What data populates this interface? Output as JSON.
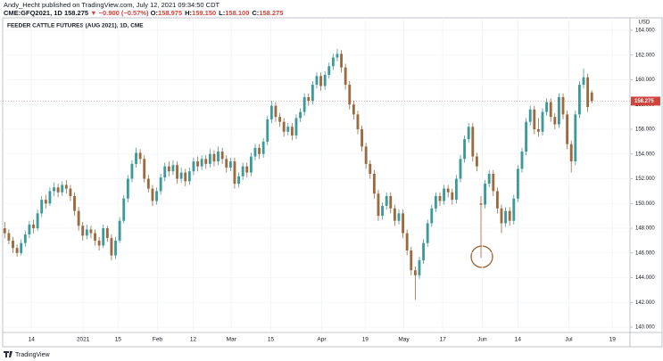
{
  "header": {
    "byline": "Andy_Hecht published on TradingView.com, July 12, 2021 09:34:50 CDT",
    "symbol": "CME:GFQ2021, 1D",
    "last": "158.275",
    "change": "▼ −0.900 (−0.57%)",
    "ohlc": [
      {
        "label": "O:",
        "value": "158.975"
      },
      {
        "label": "H:",
        "value": "159.150"
      },
      {
        "label": "L:",
        "value": "158.100"
      },
      {
        "label": "C:",
        "value": "158.275"
      }
    ]
  },
  "footer": {
    "brand": "TradingView"
  },
  "chart_data": {
    "type": "candlestick",
    "title": "FEEDER CATTLE FUTURES (AUG 2021), 1D, CME",
    "currency": "USD",
    "up_color": "#3d9a9b",
    "down_color": "#9c6a3f",
    "xlim": [
      -0.5,
      152.3
    ],
    "xticks": [
      {
        "value": 6.5,
        "label": "14"
      },
      {
        "value": 19.1,
        "label": "2021"
      },
      {
        "value": 27.6,
        "label": "15"
      },
      {
        "value": 37.2,
        "label": "Feb"
      },
      {
        "value": 45.9,
        "label": "12"
      },
      {
        "value": 55.2,
        "label": "Mar"
      },
      {
        "value": 64.8,
        "label": "15"
      },
      {
        "value": 77.2,
        "label": "Apr"
      },
      {
        "value": 87.8,
        "label": "19"
      },
      {
        "value": 97.2,
        "label": "May"
      },
      {
        "value": 106.7,
        "label": "17"
      },
      {
        "value": 116.3,
        "label": "Jun"
      },
      {
        "value": 125,
        "label": "14"
      },
      {
        "value": 137.4,
        "label": "Jul"
      },
      {
        "value": 148,
        "label": "19"
      }
    ],
    "ylim": [
      139.57,
      165.01
    ],
    "yticks": [
      {
        "value": 140,
        "label": "140.000"
      },
      {
        "value": 142,
        "label": "142.000"
      },
      {
        "value": 144,
        "label": "144.000"
      },
      {
        "value": 146,
        "label": "146.000"
      },
      {
        "value": 148,
        "label": "148.000"
      },
      {
        "value": 150,
        "label": "150.000"
      },
      {
        "value": 152,
        "label": "152.000"
      },
      {
        "value": 154,
        "label": "154.000"
      },
      {
        "value": 156,
        "label": "156.000"
      },
      {
        "value": 158,
        "label": "158.000"
      },
      {
        "value": 160,
        "label": "160.000"
      },
      {
        "value": 162,
        "label": "162.000"
      },
      {
        "value": 164,
        "label": "164.000"
      }
    ],
    "price_marker": {
      "value": 158.275,
      "label": "158.275",
      "color": "#d0453b"
    },
    "candles": [
      [
        148.0,
        148.5,
        147.2,
        147.6
      ],
      [
        147.6,
        147.9,
        146.7,
        147.0
      ],
      [
        147.0,
        147.3,
        146.0,
        146.4
      ],
      [
        146.4,
        146.7,
        145.7,
        146.0
      ],
      [
        146.0,
        147.1,
        145.8,
        146.8
      ],
      [
        146.8,
        147.8,
        146.5,
        147.5
      ],
      [
        147.5,
        148.6,
        147.2,
        148.3
      ],
      [
        148.3,
        148.7,
        147.6,
        148.0
      ],
      [
        148.0,
        149.5,
        147.8,
        149.2
      ],
      [
        149.2,
        150.6,
        148.9,
        150.3
      ],
      [
        150.3,
        150.7,
        149.6,
        150.0
      ],
      [
        150.0,
        151.3,
        149.8,
        151.0
      ],
      [
        151.0,
        151.7,
        150.6,
        151.3
      ],
      [
        151.3,
        151.6,
        150.5,
        150.9
      ],
      [
        150.9,
        151.8,
        150.6,
        151.5
      ],
      [
        151.5,
        151.9,
        150.8,
        151.2
      ],
      [
        151.2,
        151.5,
        150.2,
        150.6
      ],
      [
        150.6,
        150.9,
        149.0,
        149.4
      ],
      [
        149.4,
        149.7,
        147.8,
        148.2
      ],
      [
        148.2,
        148.5,
        147.0,
        147.4
      ],
      [
        147.4,
        148.3,
        147.1,
        147.9
      ],
      [
        147.9,
        148.2,
        147.2,
        147.6
      ],
      [
        147.6,
        147.9,
        146.6,
        147.0
      ],
      [
        147.0,
        147.3,
        146.2,
        146.6
      ],
      [
        146.6,
        148.3,
        146.4,
        148.0
      ],
      [
        148.0,
        148.2,
        146.9,
        147.2
      ],
      [
        147.2,
        147.5,
        145.4,
        145.8
      ],
      [
        145.8,
        147.3,
        145.5,
        147.0
      ],
      [
        147.0,
        148.9,
        146.8,
        148.6
      ],
      [
        148.6,
        150.7,
        148.4,
        150.4
      ],
      [
        150.4,
        152.3,
        150.1,
        152.0
      ],
      [
        152.0,
        153.5,
        151.7,
        153.2
      ],
      [
        153.2,
        154.5,
        152.9,
        154.1
      ],
      [
        154.1,
        154.4,
        153.2,
        153.6
      ],
      [
        153.6,
        153.9,
        151.7,
        152.0
      ],
      [
        152.0,
        152.3,
        150.9,
        151.2
      ],
      [
        151.2,
        151.5,
        149.8,
        150.2
      ],
      [
        150.2,
        151.3,
        149.9,
        151.0
      ],
      [
        151.0,
        152.4,
        150.7,
        152.1
      ],
      [
        152.1,
        153.3,
        151.8,
        153.0
      ],
      [
        153.0,
        153.4,
        152.2,
        152.6
      ],
      [
        152.6,
        153.5,
        152.3,
        153.1
      ],
      [
        153.1,
        153.4,
        151.6,
        152.0
      ],
      [
        152.0,
        152.9,
        151.7,
        152.5
      ],
      [
        152.5,
        152.8,
        151.4,
        151.8
      ],
      [
        151.8,
        152.9,
        151.5,
        152.6
      ],
      [
        152.6,
        153.7,
        152.3,
        153.4
      ],
      [
        153.4,
        153.8,
        152.6,
        153.0
      ],
      [
        153.0,
        153.9,
        152.7,
        153.6
      ],
      [
        153.6,
        153.9,
        152.8,
        153.2
      ],
      [
        153.2,
        154.4,
        152.9,
        154.0
      ],
      [
        154.0,
        154.3,
        153.0,
        153.4
      ],
      [
        153.4,
        154.6,
        153.1,
        154.2
      ],
      [
        154.2,
        154.5,
        153.2,
        153.6
      ],
      [
        153.6,
        153.9,
        152.5,
        152.9
      ],
      [
        152.9,
        153.7,
        152.6,
        153.4
      ],
      [
        153.4,
        153.7,
        151.2,
        151.6
      ],
      [
        151.6,
        152.5,
        151.3,
        152.2
      ],
      [
        152.2,
        153.3,
        151.9,
        153.0
      ],
      [
        153.0,
        153.3,
        152.1,
        152.5
      ],
      [
        152.5,
        154.1,
        152.2,
        153.8
      ],
      [
        153.8,
        154.8,
        153.5,
        154.5
      ],
      [
        154.5,
        154.8,
        153.6,
        154.0
      ],
      [
        154.0,
        155.3,
        153.7,
        155.0
      ],
      [
        155.0,
        157.1,
        154.7,
        156.8
      ],
      [
        156.8,
        158.3,
        156.5,
        157.9
      ],
      [
        157.9,
        158.2,
        156.6,
        157.0
      ],
      [
        157.0,
        157.3,
        156.2,
        156.6
      ],
      [
        156.6,
        156.9,
        155.4,
        155.8
      ],
      [
        155.8,
        156.5,
        155.5,
        156.2
      ],
      [
        156.2,
        156.5,
        155.1,
        155.5
      ],
      [
        155.5,
        157.2,
        155.2,
        156.9
      ],
      [
        156.9,
        157.7,
        156.6,
        157.4
      ],
      [
        157.4,
        158.9,
        157.1,
        158.6
      ],
      [
        158.6,
        158.9,
        157.9,
        158.3
      ],
      [
        158.3,
        159.9,
        158.0,
        159.6
      ],
      [
        159.6,
        160.6,
        159.3,
        160.3
      ],
      [
        160.3,
        160.6,
        159.1,
        159.5
      ],
      [
        159.5,
        160.7,
        159.2,
        160.4
      ],
      [
        160.4,
        161.4,
        160.1,
        161.1
      ],
      [
        161.1,
        162.1,
        160.8,
        161.8
      ],
      [
        161.8,
        162.5,
        161.5,
        162.1
      ],
      [
        162.1,
        162.4,
        160.6,
        161.0
      ],
      [
        161.0,
        161.3,
        159.2,
        159.6
      ],
      [
        159.6,
        159.9,
        157.6,
        158.0
      ],
      [
        158.0,
        158.3,
        156.8,
        157.2
      ],
      [
        157.2,
        157.5,
        155.6,
        156.0
      ],
      [
        156.0,
        156.3,
        154.2,
        154.6
      ],
      [
        154.6,
        154.9,
        152.8,
        153.2
      ],
      [
        153.2,
        153.5,
        152.0,
        152.4
      ],
      [
        152.4,
        152.7,
        150.4,
        150.8
      ],
      [
        150.8,
        151.1,
        148.6,
        149.0
      ],
      [
        149.0,
        150.1,
        148.7,
        149.8
      ],
      [
        149.8,
        150.9,
        149.5,
        150.6
      ],
      [
        150.6,
        150.9,
        149.2,
        149.6
      ],
      [
        149.6,
        149.9,
        148.2,
        148.6
      ],
      [
        148.6,
        149.5,
        148.3,
        149.2
      ],
      [
        149.2,
        149.5,
        147.2,
        147.6
      ],
      [
        147.6,
        147.9,
        145.8,
        146.2
      ],
      [
        146.2,
        146.5,
        144.2,
        144.6
      ],
      [
        144.6,
        144.9,
        142.2,
        144.2
      ],
      [
        144.2,
        145.7,
        143.9,
        145.4
      ],
      [
        145.4,
        147.1,
        145.1,
        146.8
      ],
      [
        146.8,
        148.7,
        146.5,
        148.4
      ],
      [
        148.4,
        149.9,
        148.1,
        149.6
      ],
      [
        149.6,
        150.9,
        149.3,
        150.6
      ],
      [
        150.6,
        150.9,
        149.8,
        150.2
      ],
      [
        150.2,
        151.5,
        149.9,
        151.2
      ],
      [
        151.2,
        151.5,
        150.5,
        150.9
      ],
      [
        150.9,
        151.2,
        149.9,
        150.3
      ],
      [
        150.3,
        152.3,
        150.0,
        152.0
      ],
      [
        152.0,
        153.9,
        151.7,
        153.6
      ],
      [
        153.6,
        155.5,
        153.3,
        155.2
      ],
      [
        155.2,
        156.5,
        154.9,
        156.2
      ],
      [
        156.2,
        156.5,
        153.4,
        153.8
      ],
      [
        153.8,
        154.1,
        152.6,
        153.0
      ],
      [
        150.0,
        150.6,
        145.6,
        149.9
      ],
      [
        149.9,
        151.9,
        149.6,
        151.6
      ],
      [
        151.6,
        152.7,
        151.3,
        152.4
      ],
      [
        152.4,
        152.7,
        150.6,
        151.0
      ],
      [
        151.0,
        151.3,
        149.2,
        149.6
      ],
      [
        149.6,
        149.9,
        147.6,
        148.4
      ],
      [
        148.4,
        149.7,
        148.1,
        149.4
      ],
      [
        149.4,
        149.7,
        148.2,
        148.6
      ],
      [
        148.6,
        150.7,
        148.3,
        150.4
      ],
      [
        150.4,
        153.1,
        150.1,
        152.8
      ],
      [
        152.8,
        154.5,
        152.5,
        154.2
      ],
      [
        154.2,
        156.9,
        153.9,
        156.6
      ],
      [
        156.6,
        157.9,
        156.3,
        157.6
      ],
      [
        157.6,
        157.9,
        155.6,
        156.0
      ],
      [
        156.0,
        156.9,
        155.4,
        155.8
      ],
      [
        155.8,
        157.7,
        155.5,
        157.4
      ],
      [
        157.4,
        158.5,
        157.1,
        158.2
      ],
      [
        158.2,
        158.5,
        156.6,
        157.0
      ],
      [
        157.0,
        157.3,
        156.0,
        156.4
      ],
      [
        156.4,
        158.9,
        156.1,
        158.6
      ],
      [
        158.6,
        158.9,
        156.8,
        157.2
      ],
      [
        157.2,
        157.5,
        154.4,
        154.8
      ],
      [
        154.8,
        155.1,
        152.5,
        153.4
      ],
      [
        153.4,
        157.5,
        153.1,
        157.2
      ],
      [
        157.2,
        159.9,
        156.9,
        159.6
      ],
      [
        159.6,
        160.9,
        159.3,
        160.2
      ],
      [
        160.2,
        160.5,
        157.4,
        157.8
      ],
      [
        158.975,
        159.15,
        158.1,
        158.275
      ]
    ]
  }
}
